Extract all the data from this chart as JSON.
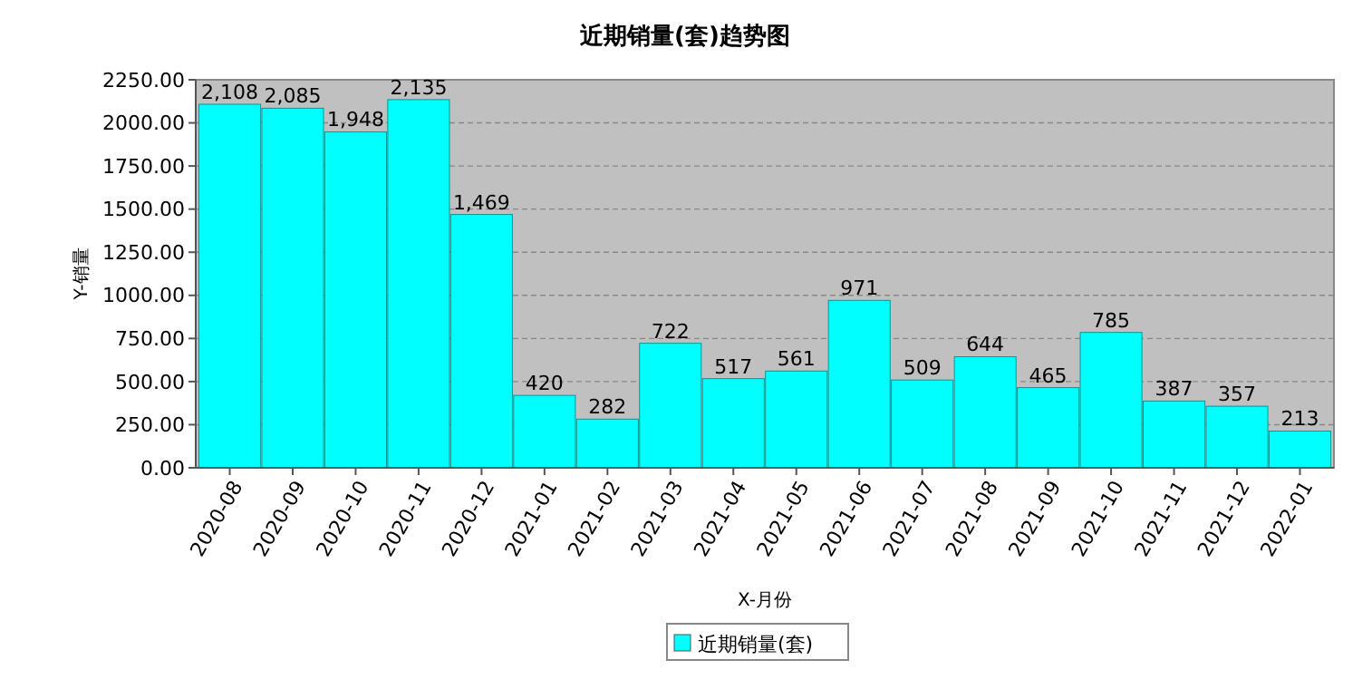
{
  "chart_data": {
    "type": "bar",
    "title": "近期销量(套)趋势图",
    "xlabel": "X-月份",
    "ylabel": "Y-销量",
    "categories": [
      "2020-08",
      "2020-09",
      "2020-10",
      "2020-11",
      "2020-12",
      "2021-01",
      "2021-02",
      "2021-03",
      "2021-04",
      "2021-05",
      "2021-06",
      "2021-07",
      "2021-08",
      "2021-09",
      "2021-10",
      "2021-11",
      "2021-12",
      "2022-01"
    ],
    "series": [
      {
        "name": "近期销量(套)",
        "color": "#00ffff",
        "values": [
          2108,
          2085,
          1948,
          2135,
          1469,
          420,
          282,
          722,
          517,
          561,
          971,
          509,
          644,
          465,
          785,
          387,
          357,
          213
        ],
        "value_labels": [
          "2,108",
          "2,085",
          "1,948",
          "2,135",
          "1,469",
          "420",
          "282",
          "722",
          "517",
          "561",
          "971",
          "509",
          "644",
          "465",
          "785",
          "387",
          "357",
          "213"
        ]
      }
    ],
    "ylim": [
      0,
      2250
    ],
    "yticks": [
      {
        "value": 0,
        "label": "0.00"
      },
      {
        "value": 250,
        "label": "250.00"
      },
      {
        "value": 500,
        "label": "500.00"
      },
      {
        "value": 750,
        "label": "750.00"
      },
      {
        "value": 1000,
        "label": "1000.00"
      },
      {
        "value": 1250,
        "label": "1250.00"
      },
      {
        "value": 1500,
        "label": "1500.00"
      },
      {
        "value": 1750,
        "label": "1750.00"
      },
      {
        "value": 2000,
        "label": "2000.00"
      },
      {
        "value": 2250,
        "label": "2250.00"
      }
    ],
    "grid": "y",
    "legend": "bottom"
  }
}
